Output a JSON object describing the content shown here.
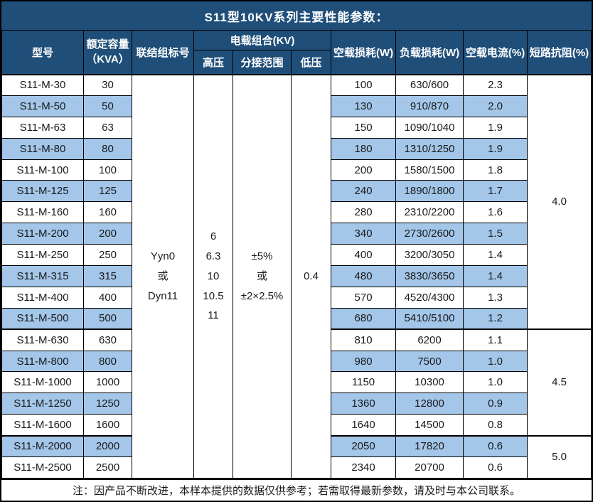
{
  "title": "S11型10KV系列主要性能参数：",
  "note": "注：因产品不断改进，本样本提供的数据仅供参考；若需取得最新参数，请及时与本公司联系。",
  "colors": {
    "header_bg": "#1F4E79",
    "header_text": "#FFFFFF",
    "stripe_bg": "#A3C6E9",
    "border": "#000000"
  },
  "table": {
    "headers": {
      "model": "型号",
      "capacity": "额定容量\n（KVA）",
      "connection": "联结组标号",
      "voltage_group": "电载组合(KV)",
      "high_voltage": "高压",
      "tap_range": "分接范围",
      "low_voltage": "低压",
      "no_load_loss": "空载损耗(W)",
      "load_loss": "负载损耗(W)",
      "no_load_current": "空载电流(%)",
      "impedance": "短路抗阻(%)"
    },
    "merged": {
      "connection": "Yyn0\n或\nDyn11",
      "high_voltage": "6\n6.3\n10\n10.5\n11",
      "tap_range": "±5%\n或\n±2×2.5%",
      "low_voltage": "0.4"
    },
    "impedance_groups": [
      {
        "value": "4.0",
        "span": 12
      },
      {
        "value": "4.5",
        "span": 5
      },
      {
        "value": "5.0",
        "span": 2
      }
    ],
    "rows": [
      {
        "model": "S11-M-30",
        "capacity": "30",
        "no_load_loss": "100",
        "load_loss": "630/600",
        "no_load_current": "2.3"
      },
      {
        "model": "S11-M-50",
        "capacity": "50",
        "no_load_loss": "130",
        "load_loss": "910/870",
        "no_load_current": "2.0"
      },
      {
        "model": "S11-M-63",
        "capacity": "63",
        "no_load_loss": "150",
        "load_loss": "1090/1040",
        "no_load_current": "1.9"
      },
      {
        "model": "S11-M-80",
        "capacity": "80",
        "no_load_loss": "180",
        "load_loss": "1310/1250",
        "no_load_current": "1.9"
      },
      {
        "model": "S11-M-100",
        "capacity": "100",
        "no_load_loss": "200",
        "load_loss": "1580/1500",
        "no_load_current": "1.8"
      },
      {
        "model": "S11-M-125",
        "capacity": "125",
        "no_load_loss": "240",
        "load_loss": "1890/1800",
        "no_load_current": "1.7"
      },
      {
        "model": "S11-M-160",
        "capacity": "160",
        "no_load_loss": "280",
        "load_loss": "2310/2200",
        "no_load_current": "1.6"
      },
      {
        "model": "S11-M-200",
        "capacity": "200",
        "no_load_loss": "340",
        "load_loss": "2730/2600",
        "no_load_current": "1.5"
      },
      {
        "model": "S11-M-250",
        "capacity": "250",
        "no_load_loss": "400",
        "load_loss": "3200/3050",
        "no_load_current": "1.4"
      },
      {
        "model": "S11-M-315",
        "capacity": "315",
        "no_load_loss": "480",
        "load_loss": "3830/3650",
        "no_load_current": "1.4"
      },
      {
        "model": "S11-M-400",
        "capacity": "400",
        "no_load_loss": "570",
        "load_loss": "4520/4300",
        "no_load_current": "1.3"
      },
      {
        "model": "S11-M-500",
        "capacity": "500",
        "no_load_loss": "680",
        "load_loss": "5410/5100",
        "no_load_current": "1.2"
      },
      {
        "model": "S11-M-630",
        "capacity": "630",
        "no_load_loss": "810",
        "load_loss": "6200",
        "no_load_current": "1.1"
      },
      {
        "model": "S11-M-800",
        "capacity": "800",
        "no_load_loss": "980",
        "load_loss": "7500",
        "no_load_current": "1.0"
      },
      {
        "model": "S11-M-1000",
        "capacity": "1000",
        "no_load_loss": "1150",
        "load_loss": "10300",
        "no_load_current": "1.0"
      },
      {
        "model": "S11-M-1250",
        "capacity": "1250",
        "no_load_loss": "1360",
        "load_loss": "12800",
        "no_load_current": "0.9"
      },
      {
        "model": "S11-M-1600",
        "capacity": "1600",
        "no_load_loss": "1640",
        "load_loss": "14500",
        "no_load_current": "0.8"
      },
      {
        "model": "S11-M-2000",
        "capacity": "2000",
        "no_load_loss": "2050",
        "load_loss": "17820",
        "no_load_current": "0.6"
      },
      {
        "model": "S11-M-2500",
        "capacity": "2500",
        "no_load_loss": "2340",
        "load_loss": "20700",
        "no_load_current": "0.6"
      }
    ]
  }
}
